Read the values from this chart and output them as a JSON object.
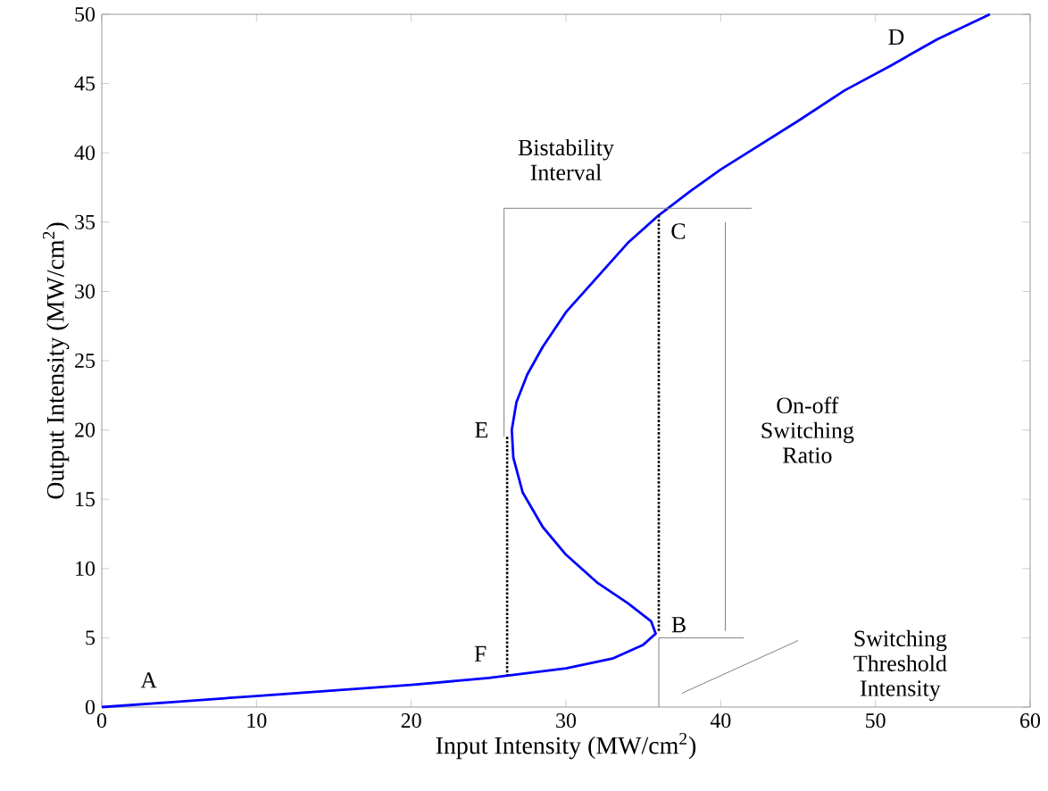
{
  "chart_data": {
    "type": "line",
    "xlabel": "Input Intensity (MW/cm$^{2}$)",
    "ylabel": "Output Intensity (MW/cm$^{2}$)",
    "xlim": [
      0,
      60
    ],
    "ylim": [
      0,
      50
    ],
    "xticks": [
      0,
      10,
      20,
      30,
      40,
      50,
      60
    ],
    "yticks": [
      0,
      5,
      10,
      15,
      20,
      25,
      30,
      35,
      40,
      45,
      50
    ],
    "grid": false,
    "marker": "none",
    "series": [
      {
        "color": "#0000ff",
        "line_style": "solid",
        "x": [
          0,
          5,
          10,
          15,
          20,
          25,
          30,
          33,
          35,
          35.8,
          35.5,
          34,
          32,
          30,
          28.5,
          27.2,
          26.6,
          26.5,
          26.8,
          27.5,
          28.5,
          30,
          32,
          34,
          36,
          38,
          40,
          42,
          45,
          48,
          51,
          54,
          57.4
        ],
        "values": [
          0,
          0.4,
          0.8,
          1.2,
          1.6,
          2.1,
          2.8,
          3.5,
          4.5,
          5.3,
          6.2,
          7.5,
          9,
          11,
          13,
          15.5,
          18,
          20,
          22,
          24,
          26,
          28.5,
          31,
          33.5,
          35.5,
          37.2,
          38.8,
          40.2,
          42.3,
          44.5,
          46.3,
          48.2,
          50
        ]
      },
      {
        "color": "#000000",
        "line_style": "dotted",
        "x": [
          26.2,
          26.2
        ],
        "values": [
          19.5,
          2.3
        ]
      },
      {
        "color": "#000000",
        "line_style": "dotted",
        "x": [
          36,
          36
        ],
        "values": [
          5.5,
          35.5
        ]
      },
      {
        "color": "#808080",
        "line_style": "solid",
        "x": [
          26,
          26,
          42
        ],
        "values": [
          19.5,
          36,
          36
        ]
      },
      {
        "color": "#808080",
        "line_style": "solid",
        "x": [
          36,
          41.5
        ],
        "values": [
          5,
          5
        ]
      },
      {
        "color": "#808080",
        "line_style": "solid",
        "x": [
          40.3,
          40.3
        ],
        "values": [
          35,
          5.5
        ]
      },
      {
        "color": "#808080",
        "line_style": "solid",
        "x": [
          36,
          36
        ],
        "values": [
          0,
          5
        ]
      },
      {
        "color": "#808080",
        "line_style": "solid",
        "x": [
          37.5,
          45
        ],
        "values": [
          1,
          4.8
        ]
      }
    ],
    "annotations": [
      {
        "text": "A",
        "x": 5,
        "y": 0.4
      },
      {
        "text": "B",
        "x": 35.8,
        "y": 5.3
      },
      {
        "text": "C",
        "x": 36,
        "y": 35.5
      },
      {
        "text": "D",
        "x": 51,
        "y": 46.3
      },
      {
        "text": "E",
        "x": 26.5,
        "y": 20
      },
      {
        "text": "F",
        "x": 26.2,
        "y": 2.3
      },
      "Bistability Interval",
      "On-off Switching Ratio",
      "Switching Threshold Intensity"
    ]
  }
}
